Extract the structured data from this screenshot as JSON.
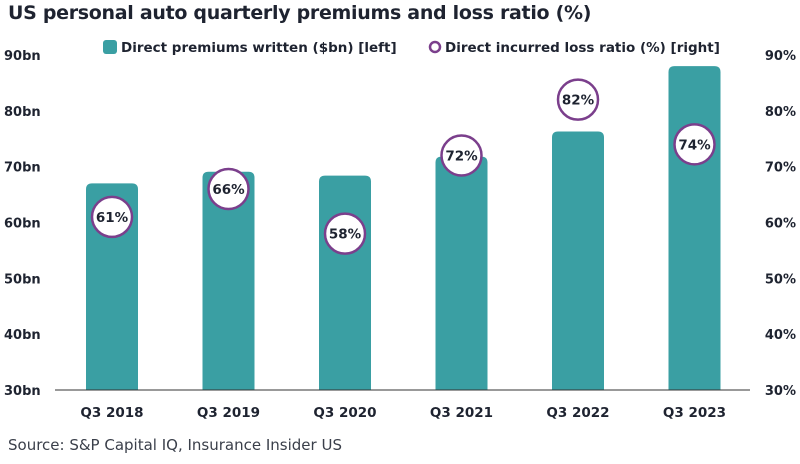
{
  "chart_data": {
    "type": "bar",
    "title": "US personal auto quarterly premiums and loss ratio (%)",
    "source": "Source: S&P Capital IQ, Insurance Insider US",
    "categories": [
      "Q3 2018",
      "Q3 2019",
      "Q3 2020",
      "Q3 2021",
      "Q3 2022",
      "Q3 2023"
    ],
    "series": [
      {
        "name": "Direct premiums written ($bn) [left]",
        "type": "bar",
        "axis": "left",
        "color": "#3a9fa3",
        "values": [
          67.0,
          69.1,
          68.4,
          71.8,
          76.3,
          88.0
        ]
      },
      {
        "name": "Direct incurred loss ratio (%) [right]",
        "type": "scatter",
        "axis": "right",
        "color": "#7b3f8c",
        "values": [
          61,
          66,
          58,
          72,
          82,
          74
        ],
        "labels": [
          "61%",
          "66%",
          "58%",
          "72%",
          "82%",
          "74%"
        ]
      }
    ],
    "left_axis": {
      "ylim": [
        30,
        90
      ],
      "ticks": [
        90,
        80,
        70,
        60,
        50,
        40,
        30
      ],
      "tick_labels": [
        "90bn",
        "80bn",
        "70bn",
        "60bn",
        "50bn",
        "40bn",
        "30bn"
      ]
    },
    "right_axis": {
      "ylim": [
        30,
        90
      ],
      "ticks": [
        90,
        80,
        70,
        60,
        50,
        40,
        30
      ],
      "tick_labels": [
        "90%",
        "80%",
        "70%",
        "60%",
        "50%",
        "40%",
        "30%"
      ]
    },
    "xlabel": "",
    "ylabel": "",
    "grid": false,
    "legend": "top-center"
  }
}
